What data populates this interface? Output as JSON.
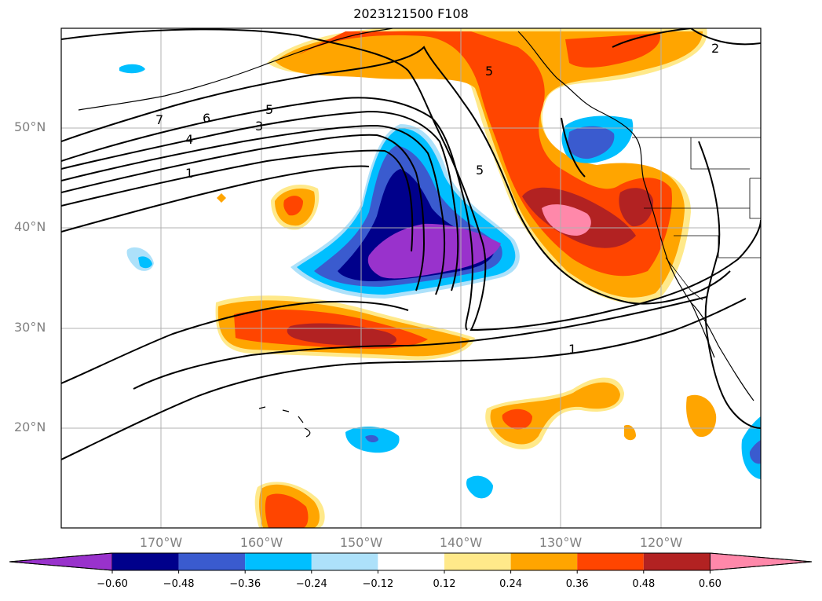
{
  "title": "2023121500 F108",
  "latitude_labels": [
    "50°N",
    "40°N",
    "30°N",
    "20°N"
  ],
  "longitude_labels": [
    "170°W",
    "160°W",
    "150°W",
    "140°W",
    "130°W",
    "120°W"
  ],
  "contour_labels": [
    "7",
    "6",
    "5",
    "4",
    "3",
    "1",
    "5",
    "5",
    "2",
    "1"
  ],
  "colorbar": {
    "ticks": [
      "−0.60",
      "−0.48",
      "−0.36",
      "−0.24",
      "−0.12",
      "0.12",
      "0.24",
      "0.36",
      "0.48",
      "0.60"
    ],
    "colors": [
      "#9932CC",
      "#00008B",
      "#3A5BCF",
      "#00BFFF",
      "#ADE1FA",
      "#FFFFFF",
      "#FFE98A",
      "#FFA500",
      "#FF4500",
      "#B22222",
      "#FF88AA"
    ]
  },
  "colors": {
    "contour": "#000000",
    "grid": "#b0b0b0",
    "axis_label": "#808080"
  }
}
